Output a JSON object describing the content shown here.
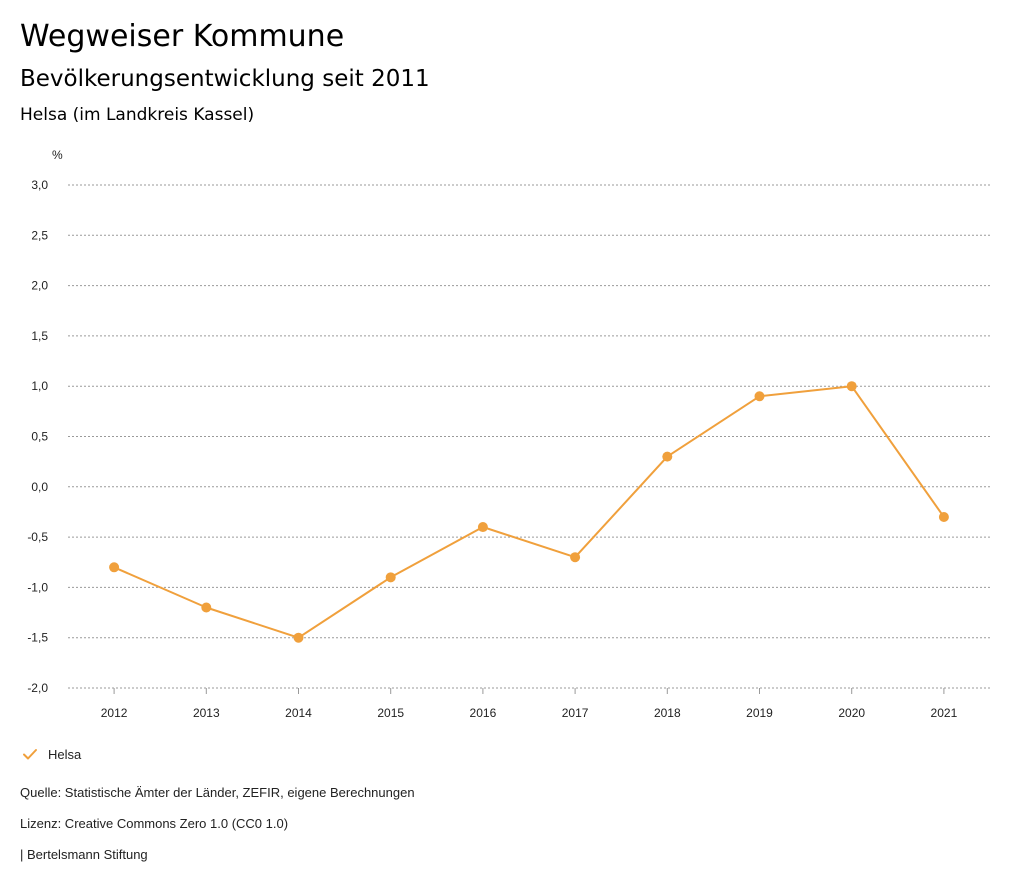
{
  "header": {
    "title": "Wegweiser Kommune",
    "subtitle": "Bevölkerungsentwicklung seit 2011",
    "region": "Helsa (im Landkreis Kassel)"
  },
  "chart_data": {
    "type": "line",
    "title": "Bevölkerungsentwicklung seit 2011",
    "ylabel": "%",
    "xlabel": "",
    "ylim": [
      -2.0,
      3.0
    ],
    "yticks": [
      "3,0",
      "2,5",
      "2,0",
      "1,5",
      "1,0",
      "0,5",
      "0,0",
      "-0,5",
      "-1,0",
      "-1,5",
      "-2,0"
    ],
    "categories": [
      "2012",
      "2013",
      "2014",
      "2015",
      "2016",
      "2017",
      "2018",
      "2019",
      "2020",
      "2021"
    ],
    "series": [
      {
        "name": "Helsa",
        "color": "#f0a03c",
        "values": [
          -0.8,
          -1.2,
          -1.5,
          -0.9,
          -0.4,
          -0.7,
          0.3,
          0.9,
          1.0,
          -0.3
        ]
      }
    ],
    "grid": true,
    "legend": "bottom-left"
  },
  "legend": {
    "label": "Helsa"
  },
  "footer": {
    "source": "Quelle: Statistische Ämter der Länder, ZEFIR, eigene Berechnungen",
    "license": "Lizenz: Creative Commons Zero 1.0 (CC0 1.0)",
    "publisher": "| Bertelsmann Stiftung"
  }
}
